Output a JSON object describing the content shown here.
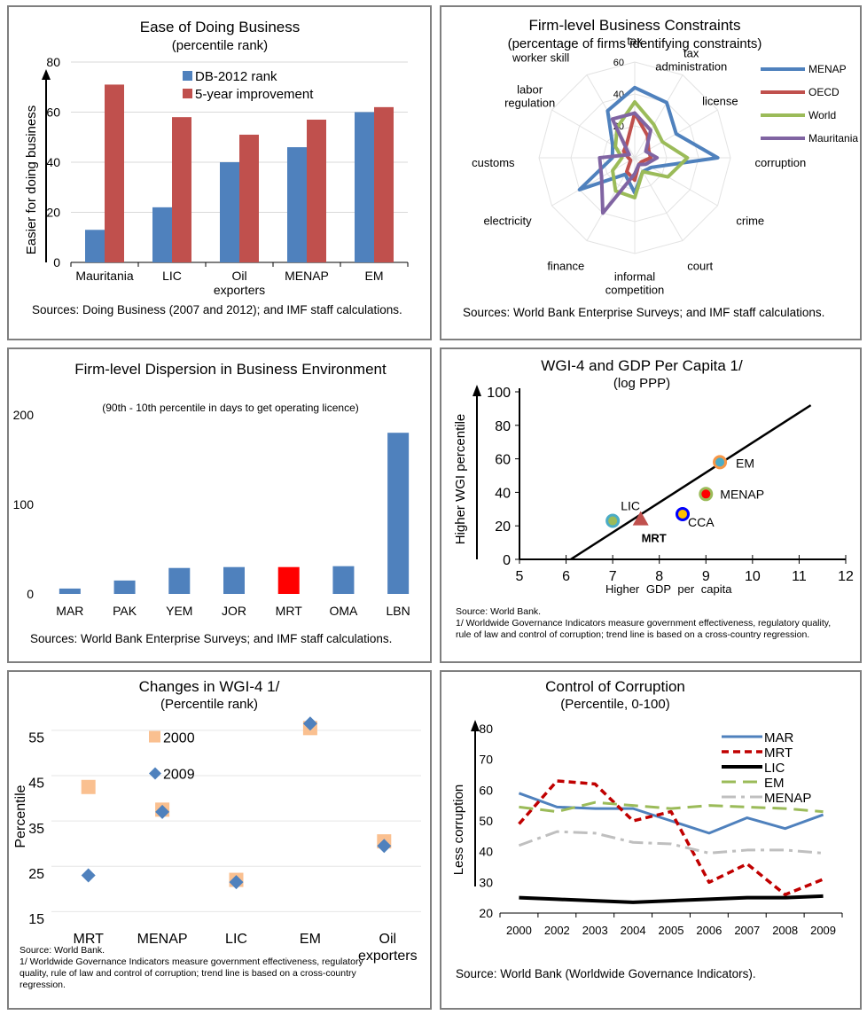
{
  "colors": {
    "db_blue": "#4f81bd",
    "db_red": "#c0504d",
    "red_bar": "#ff0000",
    "trend_line": "#000000",
    "menap_line": "#4f81bd",
    "oecd_line": "#c0504d",
    "world_line": "#9bbb59",
    "mauritania_line": "#8064a2",
    "marker_2000": "#fac090",
    "marker_2009": "#4f81bd",
    "mar": "#4f81bd",
    "mrt": "#c00000",
    "lic": "#000000",
    "em": "#9bbb59",
    "menap_dashdot": "#bfbfbf"
  },
  "panel1": {
    "title": "Ease of Doing Business",
    "subtitle": "(percentile rank)",
    "source": "Sources: Doing Business (2007 and 2012); and IMF staff calculations."
  },
  "panel2": {
    "title": "Firm-level Business Constraints",
    "subtitle": "(percentage of firms identifying constraints)",
    "source": "Sources: World Bank Enterprise Surveys; and IMF staff calculations."
  },
  "panel3": {
    "title": "Firm-level Dispersion in Business Environment",
    "subtitle": "(90th - 10th percentile in days to get operating licence)",
    "source": "Sources: World Bank Enterprise Surveys; and IMF staff calculations."
  },
  "panel4": {
    "title": "WGI-4 and GDP Per Capita 1/",
    "subtitle": "(log PPP)",
    "source_line1": "Source: World Bank.",
    "source_line2": "1/ Worldwide Governance Indicators measure government effectiveness, regulatory quality, rule of law and control of corruption; trend line is based on a cross-country regression."
  },
  "panel5": {
    "title": "Changes in WGI-4 1/",
    "subtitle": "(Percentile rank)",
    "source_line1": "Source: World Bank.",
    "source_line2": "1/ Worldwide Governance Indicators measure government effectiveness, regulatory quality, rule of law and control of corruption; trend line is based on a cross-country regression."
  },
  "panel6": {
    "title": "Control of Corruption",
    "subtitle": "(Percentile, 0-100)",
    "source": "Source: World Bank (Worldwide Governance Indicators)."
  },
  "chart_data": [
    {
      "type": "bar",
      "categories": [
        "Mauritania",
        "LIC",
        "Oil exporters",
        "MENAP",
        "EM"
      ],
      "series": [
        {
          "name": "DB-2012 rank",
          "values": [
            13,
            22,
            40,
            46,
            60
          ]
        },
        {
          "name": "5-year improvement",
          "values": [
            71,
            58,
            51,
            57,
            62
          ]
        }
      ],
      "ylabel": "Easier for doing business",
      "ylim": [
        0,
        80
      ],
      "yticks": [
        0,
        20,
        40,
        60,
        80
      ],
      "grid": true,
      "legend": "top-center"
    },
    {
      "type": "radar",
      "axes": [
        "tax",
        "tax administration",
        "license",
        "corruption",
        "crime",
        "court",
        "informal competition",
        "finance",
        "electricity",
        "customs",
        "labor regulation",
        "worker skill"
      ],
      "rticks": [
        20,
        40,
        60
      ],
      "rmax": 60,
      "series": [
        {
          "name": "MENAP",
          "values": [
            44,
            40,
            30,
            52,
            12,
            10,
            22,
            12,
            40,
            14,
            16,
            34
          ]
        },
        {
          "name": "OECD",
          "values": [
            28,
            16,
            10,
            10,
            5,
            5,
            14,
            10,
            3,
            4,
            8,
            10
          ]
        },
        {
          "name": "World",
          "values": [
            35,
            24,
            20,
            33,
            24,
            10,
            25,
            24,
            16,
            8,
            14,
            22
          ]
        },
        {
          "name": "Mauritania",
          "values": [
            28,
            20,
            8,
            14,
            8,
            5,
            10,
            40,
            24,
            22,
            4,
            28
          ]
        }
      ],
      "legend": "right"
    },
    {
      "type": "bar",
      "categories": [
        "MAR",
        "PAK",
        "YEM",
        "JOR",
        "MRT",
        "OMA",
        "LBN"
      ],
      "values": [
        6,
        15,
        29,
        30,
        30,
        31,
        180
      ],
      "highlight": "MRT",
      "ylim": [
        0,
        200
      ],
      "yticks": [
        0,
        100,
        200
      ],
      "grid": false
    },
    {
      "type": "scatter",
      "xlabel": "Higher GDP per capita",
      "ylabel": "Higher WGI percentile",
      "xlim": [
        5,
        12
      ],
      "ylim": [
        0,
        100
      ],
      "xticks": [
        5,
        6,
        7,
        8,
        9,
        10,
        11,
        12
      ],
      "yticks": [
        0,
        20,
        40,
        60,
        80,
        100
      ],
      "points": [
        {
          "label": "EM",
          "x": 9.3,
          "y": 58,
          "fill": "#4bacc6",
          "stroke": "#f79646"
        },
        {
          "label": "MENAP",
          "x": 9.0,
          "y": 39,
          "fill": "#ff0000",
          "stroke": "#9bbb59"
        },
        {
          "label": "CCA",
          "x": 8.5,
          "y": 27,
          "fill": "#ffc000",
          "stroke": "#0000ff"
        },
        {
          "label": "LIC",
          "x": 7.0,
          "y": 23,
          "fill": "#9bbb59",
          "stroke": "#4bacc6"
        },
        {
          "label": "MRT",
          "x": 7.6,
          "y": 24,
          "fill": "#c0504d",
          "stroke": "#c0504d",
          "marker": "triangle"
        }
      ],
      "trend": {
        "x": [
          6.1,
          11.25
        ],
        "y": [
          0,
          92
        ]
      }
    },
    {
      "type": "scatter",
      "categories": [
        "MRT",
        "MENAP",
        "LIC",
        "EM",
        "Oil exporters"
      ],
      "ylabel": "Percentile",
      "ylim": [
        15,
        60
      ],
      "yticks": [
        15,
        25,
        35,
        45,
        55
      ],
      "series": [
        {
          "name": "2000",
          "values": [
            44,
            39,
            23.5,
            57,
            32
          ]
        },
        {
          "name": "2009",
          "values": [
            24.5,
            38.5,
            23,
            58,
            31
          ]
        }
      ],
      "legend": "top-left"
    },
    {
      "type": "line",
      "x": [
        "2000",
        "2002",
        "2003",
        "2004",
        "2005",
        "2006",
        "2007",
        "2008",
        "2009"
      ],
      "series": [
        {
          "name": "MAR",
          "values": [
            59,
            54.5,
            54,
            54,
            50,
            46,
            51,
            47.5,
            52
          ]
        },
        {
          "name": "MRT",
          "values": [
            49,
            63,
            62,
            50,
            53,
            30,
            36,
            26,
            31
          ]
        },
        {
          "name": "LIC",
          "values": [
            25,
            24.5,
            24,
            23.5,
            24,
            24.5,
            25,
            25,
            25.5
          ]
        },
        {
          "name": "EM",
          "values": [
            54.5,
            53,
            56,
            55,
            54,
            55,
            54.5,
            54,
            53
          ]
        },
        {
          "name": "MENAP",
          "values": [
            42,
            46.5,
            46,
            43,
            42.5,
            39.5,
            40.5,
            40.5,
            39.5
          ]
        }
      ],
      "ylabel": "Less corruption",
      "ylim": [
        20,
        80
      ],
      "yticks": [
        20,
        30,
        40,
        50,
        60,
        70,
        80
      ],
      "legend": "top-right"
    }
  ]
}
